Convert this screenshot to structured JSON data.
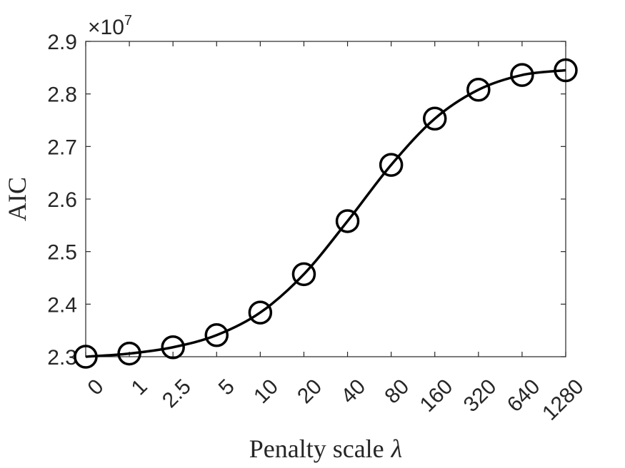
{
  "chart_data": {
    "type": "line",
    "xlabel": "Penalty scale",
    "xlabel_symbol": "λ",
    "ylabel": "AIC",
    "exponent": {
      "base": "×10",
      "power": "7"
    },
    "categories": [
      "0",
      "1",
      "2.5",
      "5",
      "10",
      "20",
      "40",
      "80",
      "160",
      "320",
      "640",
      "1280"
    ],
    "y_ticks": [
      "2.3",
      "2.4",
      "2.5",
      "2.6",
      "2.7",
      "2.8",
      "2.9"
    ],
    "ylim": [
      2.3,
      2.9
    ],
    "series": [
      {
        "marker": "open-circle",
        "color": "#000000",
        "values": [
          2.3,
          2.306,
          2.318,
          2.341,
          2.384,
          2.457,
          2.558,
          2.665,
          2.753,
          2.808,
          2.836,
          2.845
        ]
      }
    ],
    "grid": false,
    "box": true
  }
}
